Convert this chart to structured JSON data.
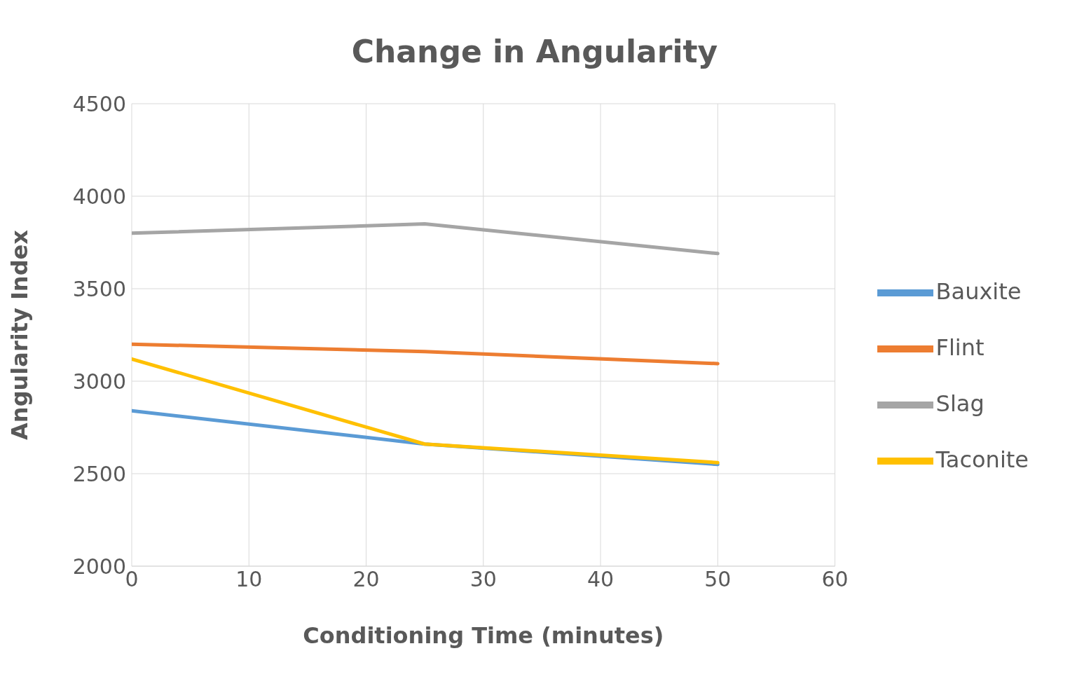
{
  "chart_data": {
    "type": "line",
    "title": "Change in Angularity",
    "xlabel": "Conditioning Time (minutes)",
    "ylabel": "Angularity Index",
    "x": [
      0,
      25,
      50
    ],
    "series": [
      {
        "name": "Bauxite",
        "color": "#5b9bd5",
        "values": [
          2840,
          2660,
          2550
        ]
      },
      {
        "name": "Flint",
        "color": "#ed7d31",
        "values": [
          3200,
          3160,
          3095
        ]
      },
      {
        "name": "Slag",
        "color": "#a5a5a5",
        "values": [
          3800,
          3850,
          3690
        ]
      },
      {
        "name": "Taconite",
        "color": "#ffc000",
        "values": [
          3120,
          2660,
          2560
        ]
      }
    ],
    "xlim": [
      0,
      60
    ],
    "xticks": [
      0,
      10,
      20,
      30,
      40,
      50,
      60
    ],
    "ylim": [
      2000,
      4500
    ],
    "yticks": [
      2000,
      2500,
      3000,
      3500,
      4000,
      4500
    ],
    "grid": true,
    "legend": "right",
    "marker": "none",
    "line_style": "solid"
  }
}
